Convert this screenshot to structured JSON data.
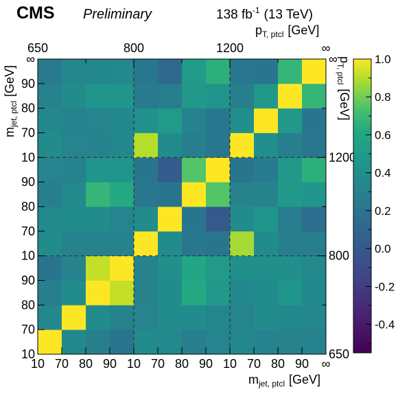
{
  "header": {
    "experiment": "CMS",
    "status": "Preliminary",
    "lumi_text": "138 fb",
    "lumi_exp": "-1",
    "energy_text": "(13 TeV)"
  },
  "chart_data": {
    "type": "heatmap",
    "xlabel": "m",
    "xlabel_sub": "jet, ptcl",
    "xlabel_unit": "[GeV]",
    "ylabel": "m",
    "ylabel_sub": "jet, ptcl",
    "ylabel_unit": "[GeV]",
    "top_xlabel": "p",
    "top_xlabel_sub": "T, ptcl",
    "top_xlabel_unit": "[GeV]",
    "right_ylabel": "p",
    "right_ylabel_sub": "T, ptcl",
    "right_ylabel_unit": "[GeV]",
    "x_tick_labels": [
      "10",
      "70",
      "80",
      "90",
      "10",
      "70",
      "80",
      "90",
      "10",
      "70",
      "80",
      "90",
      "∞"
    ],
    "y_tick_labels": [
      "10",
      "70",
      "80",
      "90",
      "10",
      "70",
      "80",
      "90",
      "10",
      "70",
      "80",
      "90",
      "∞"
    ],
    "pt_tick_labels": [
      "650",
      "800",
      "1200",
      "∞"
    ],
    "colorbar_ticks": [
      "1.0",
      "0.8",
      "0.6",
      "0.4",
      "0.2",
      "0.0",
      "-0.2",
      "-0.4"
    ],
    "zlim": [
      -0.55,
      1.0
    ],
    "n_bins": 12,
    "values": [
      [
        1.0,
        0.35,
        0.28,
        0.2,
        0.38,
        0.36,
        0.28,
        0.32,
        0.35,
        0.3,
        0.3,
        0.3
      ],
      [
        0.35,
        1.0,
        0.38,
        0.3,
        0.32,
        0.38,
        0.38,
        0.33,
        0.32,
        0.38,
        0.35,
        0.34
      ],
      [
        0.28,
        0.38,
        1.0,
        0.92,
        0.3,
        0.38,
        0.62,
        0.48,
        0.35,
        0.38,
        0.45,
        0.35
      ],
      [
        0.2,
        0.3,
        0.92,
        1.0,
        0.3,
        0.4,
        0.6,
        0.5,
        0.4,
        0.4,
        0.4,
        0.36
      ],
      [
        0.38,
        0.3,
        0.3,
        0.3,
        1.0,
        0.38,
        0.22,
        0.2,
        0.88,
        0.38,
        0.28,
        0.28
      ],
      [
        0.36,
        0.38,
        0.38,
        0.32,
        0.38,
        1.0,
        0.2,
        0.0,
        0.38,
        0.45,
        0.26,
        0.15
      ],
      [
        0.28,
        0.36,
        0.68,
        0.62,
        0.22,
        0.2,
        1.0,
        0.75,
        0.3,
        0.3,
        0.48,
        0.45
      ],
      [
        0.32,
        0.3,
        0.45,
        0.45,
        0.2,
        0.02,
        0.75,
        1.0,
        0.2,
        0.25,
        0.48,
        0.65
      ],
      [
        0.38,
        0.32,
        0.3,
        0.35,
        0.9,
        0.38,
        0.28,
        0.22,
        1.0,
        0.4,
        0.28,
        0.22
      ],
      [
        0.35,
        0.3,
        0.32,
        0.35,
        0.42,
        0.5,
        0.3,
        0.22,
        0.4,
        1.0,
        0.48,
        0.2
      ],
      [
        0.3,
        0.38,
        0.45,
        0.45,
        0.25,
        0.26,
        0.48,
        0.45,
        0.28,
        0.48,
        1.0,
        0.68
      ],
      [
        0.25,
        0.34,
        0.35,
        0.36,
        0.22,
        0.12,
        0.5,
        0.65,
        0.22,
        0.2,
        0.68,
        1.0
      ]
    ]
  }
}
